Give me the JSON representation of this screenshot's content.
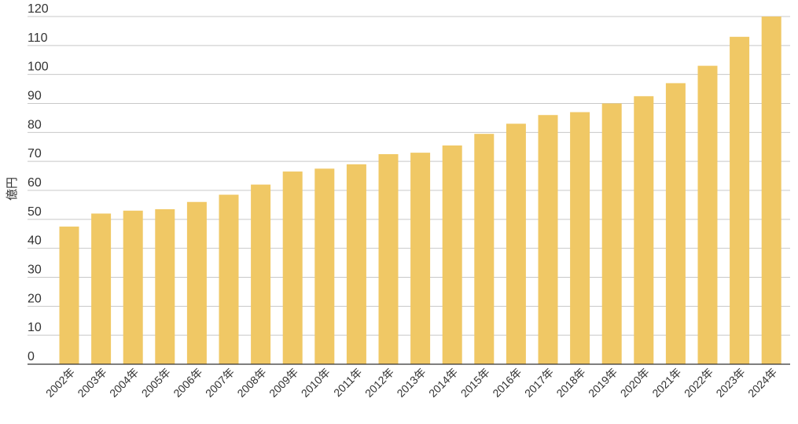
{
  "chart_data": {
    "type": "bar",
    "ylabel": "億円",
    "ylim": [
      0,
      120
    ],
    "yticks": [
      "0",
      "10",
      "20",
      "30",
      "40",
      "50",
      "60",
      "70",
      "80",
      "90",
      "100",
      "110",
      "120"
    ],
    "grid": true,
    "bar_color": "#f0c865",
    "categories": [
      "2002年",
      "2003年",
      "2004年",
      "2005年",
      "2006年",
      "2007年",
      "2008年",
      "2009年",
      "2010年",
      "2011年",
      "2012年",
      "2013年",
      "2014年",
      "2015年",
      "2016年",
      "2017年",
      "2018年",
      "2019年",
      "2020年",
      "2021年",
      "2022年",
      "2023年",
      "2024年"
    ],
    "values": [
      47.5,
      52,
      53,
      53.5,
      56,
      58.5,
      62,
      66.5,
      67.5,
      69,
      72.5,
      73,
      75.5,
      79.5,
      83,
      86,
      87,
      90,
      92.5,
      97,
      103,
      113,
      120
    ]
  }
}
